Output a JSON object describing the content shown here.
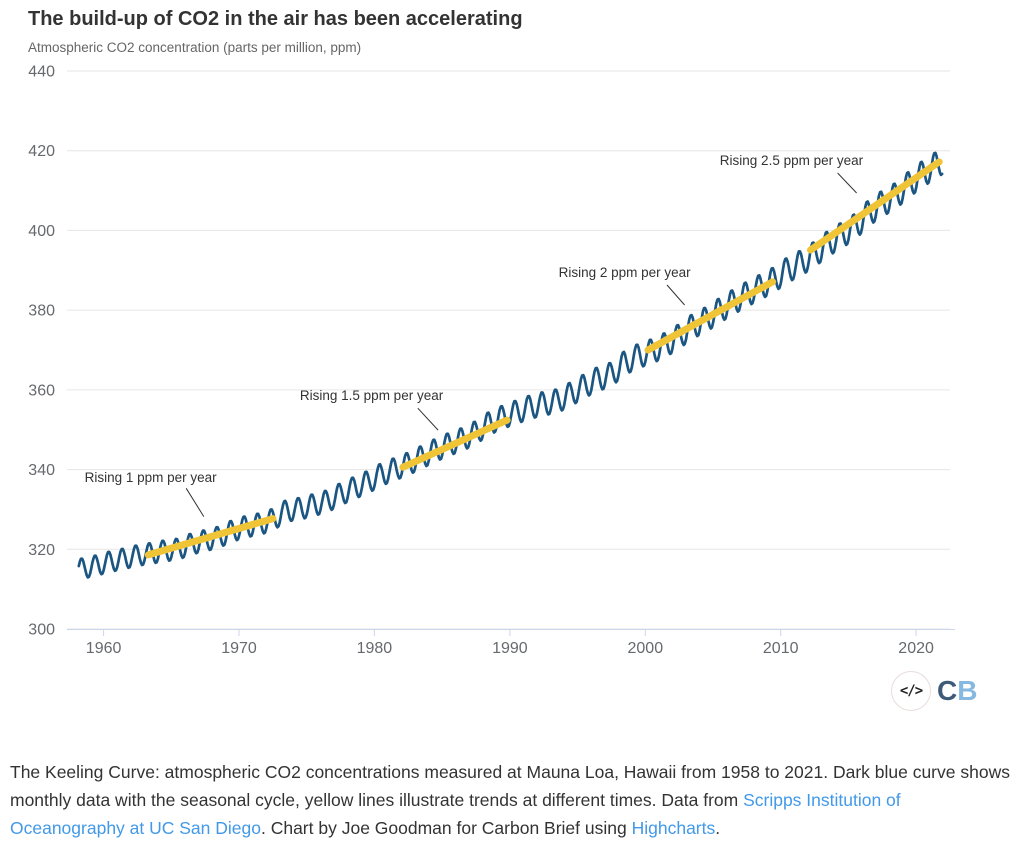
{
  "header": {
    "title": "The build-up of CO2 in the air has been accelerating",
    "subtitle": "Atmospheric CO2 concentration (parts per million, ppm)"
  },
  "chart_data": {
    "type": "line",
    "title": "The build-up of CO2 in the air has been accelerating",
    "ylabel": "Atmospheric CO2 concentration (parts per million, ppm)",
    "xlabel": "",
    "grid": "horizontal",
    "x_axis": {
      "min": 1957.3,
      "max": 2022.5,
      "ticks": [
        1960,
        1970,
        1980,
        1990,
        2000,
        2010,
        2020
      ]
    },
    "y_axis": {
      "min": 300,
      "max": 440,
      "ticks": [
        300,
        320,
        340,
        360,
        380,
        400,
        420,
        440
      ]
    },
    "series": [
      {
        "name": "Monthly CO2 with seasonal cycle (Keeling Curve, Mauna Loa)",
        "color": "#1b5682",
        "start_year": 1958,
        "end_year": 2021,
        "seasonal_amplitude_ppm": 3,
        "seasonal_peak_month": "May",
        "annual_mean_ppm": [
          315.23,
          315.98,
          316.91,
          317.64,
          318.45,
          318.99,
          319.62,
          320.04,
          321.37,
          322.18,
          323.05,
          324.62,
          325.68,
          326.32,
          327.46,
          329.68,
          330.19,
          331.13,
          332.03,
          333.84,
          335.41,
          336.84,
          338.76,
          340.12,
          341.48,
          343.15,
          344.87,
          346.35,
          347.61,
          349.31,
          351.69,
          353.2,
          354.45,
          355.7,
          356.54,
          357.21,
          358.96,
          360.97,
          362.74,
          363.88,
          366.84,
          368.54,
          369.71,
          371.32,
          373.45,
          375.98,
          377.7,
          379.98,
          382.09,
          384.02,
          385.83,
          387.64,
          390.1,
          391.85,
          394.06,
          396.74,
          398.81,
          401.01,
          404.41,
          406.76,
          408.72,
          411.66,
          414.24,
          416.45
        ]
      }
    ],
    "trend_color": "#efc437",
    "trend_lines": [
      {
        "label": "Rising 1 ppm per year",
        "from_year": 1963.3,
        "from_ppm": 318.6,
        "to_year": 1972.5,
        "to_ppm": 327.7,
        "label_year": 1958.6,
        "label_ppm": 336.9,
        "callout": [
          1966.1,
          335.3,
          1967.4,
          328.2
        ]
      },
      {
        "label": "Rising 1.5 ppm per year",
        "from_year": 1982.1,
        "from_ppm": 340.6,
        "to_year": 1989.8,
        "to_ppm": 352.4,
        "label_year": 1974.5,
        "label_ppm": 357.5,
        "callout": [
          1983.2,
          355.4,
          1984.7,
          349.9
        ]
      },
      {
        "label": "Rising 2 ppm per year",
        "from_year": 2000.2,
        "from_ppm": 370.0,
        "to_year": 2009.4,
        "to_ppm": 387.1,
        "label_year": 1993.6,
        "label_ppm": 388.3,
        "callout": [
          2001.6,
          386.3,
          2002.9,
          381.3
        ]
      },
      {
        "label": "Rising 2.5 ppm per year",
        "from_year": 2012.2,
        "from_ppm": 395.1,
        "to_year": 2021.7,
        "to_ppm": 417.2,
        "label_year": 2005.5,
        "label_ppm": 416.4,
        "callout": [
          2014.2,
          414.4,
          2015.6,
          409.4
        ]
      }
    ]
  },
  "footer": {
    "logo": {
      "code_icon": "</>",
      "cb_c": "C",
      "cb_b": "B"
    },
    "caption": {
      "parts": [
        {
          "text": "The Keeling Curve: atmospheric CO2 concentrations measured at Mauna Loa, Hawaii from 1958 to 2021. Dark blue curve shows monthly data with the seasonal cycle, yellow lines illustrate trends at different times. Data from "
        },
        {
          "text": "Scripps Institution of Oceanography at UC San Diego"
        },
        {
          "text": ". Chart by Joe Goodman for Carbon Brief using "
        },
        {
          "text": "Highcharts"
        },
        {
          "text": "."
        }
      ],
      "link_color": "#4299e8"
    }
  }
}
